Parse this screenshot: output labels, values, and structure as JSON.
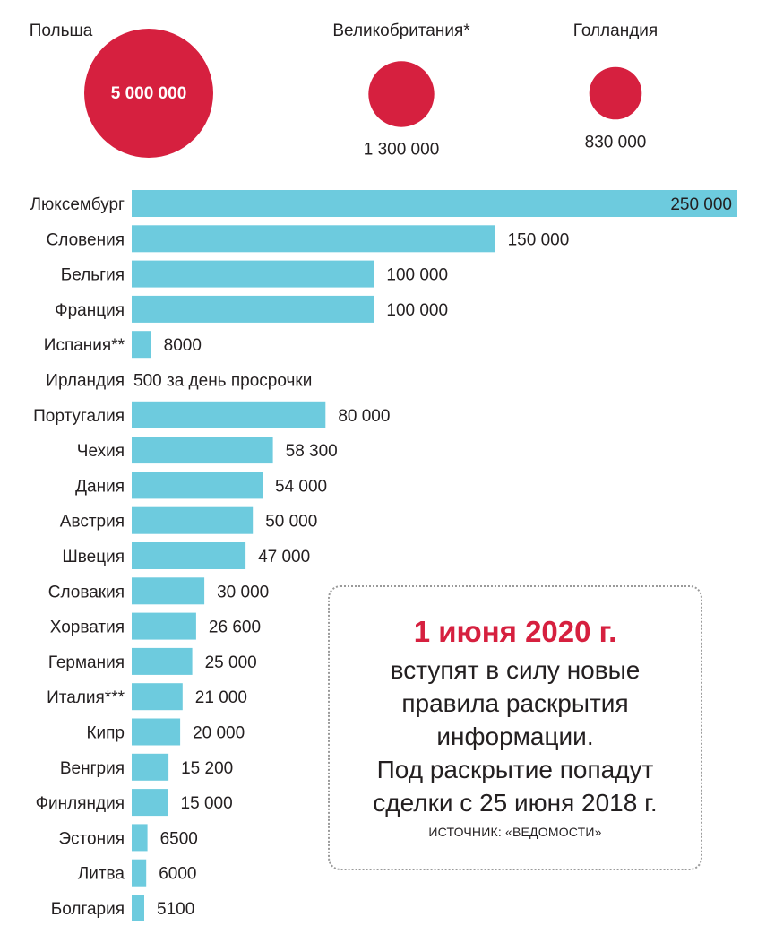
{
  "chart_data": [
    {
      "type": "bubble",
      "items": [
        {
          "name": "Польша",
          "value": 5000000,
          "value_label": "5 000 000",
          "label_inside": true
        },
        {
          "name": "Великобритания*",
          "value": 1300000,
          "value_label": "1 300 000",
          "label_inside": false
        },
        {
          "name": "Голландия",
          "value": 830000,
          "value_label": "830 000",
          "label_inside": false
        }
      ],
      "color": "#d6203f"
    },
    {
      "type": "bar",
      "orientation": "horizontal",
      "categories": [
        "Люксембург",
        "Словения",
        "Бельгия",
        "Франция",
        "Испания**",
        "Ирландия",
        "Португалия",
        "Чехия",
        "Дания",
        "Австрия",
        "Швеция",
        "Словакия",
        "Хорватия",
        "Германия",
        "Италия***",
        "Кипр",
        "Венгрия",
        "Финляндия",
        "Эстония",
        "Литва",
        "Болгария"
      ],
      "values": [
        250000,
        150000,
        100000,
        100000,
        8000,
        null,
        80000,
        58300,
        54000,
        50000,
        47000,
        30000,
        26600,
        25000,
        21000,
        20000,
        15200,
        15000,
        6500,
        6000,
        5100
      ],
      "value_labels": [
        "250 000",
        "150 000",
        "100 000",
        "100 000",
        "8000",
        "500 за день просрочки",
        "80 000",
        "58 300",
        "54 000",
        "50 000",
        "47 000",
        "30 000",
        "26 600",
        "25 000",
        "21 000",
        "20 000",
        "15 200",
        "15 000",
        "6500",
        "6000",
        "5100"
      ],
      "xlim": [
        0,
        250000
      ],
      "color": "#6dcbde"
    }
  ],
  "callout": {
    "date": "1 июня 2020 г.",
    "body_lines": [
      "вступят в силу новые",
      "правила раскрытия",
      "информации.",
      "Под раскрытие попадут",
      "сделки с 25 июня 2018 г."
    ],
    "source": "ИСТОЧНИК: «ВЕДОМОСТИ»"
  }
}
